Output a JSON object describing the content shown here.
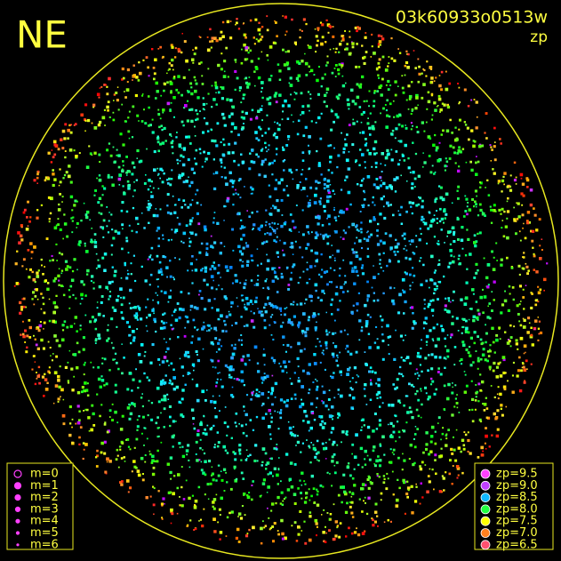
{
  "corner_label": "NE",
  "header": {
    "title": "03k60933o0513w",
    "subtitle": "zp"
  },
  "magnitude_legend": {
    "entries": [
      "m=0",
      "m=1",
      "m=2",
      "m=3",
      "m=4",
      "m=5",
      "m=6"
    ]
  },
  "zp_legend": {
    "entries": [
      {
        "label": "zp=9.5",
        "color": "#ff40ff"
      },
      {
        "label": "zp=9.0",
        "color": "#c040ff"
      },
      {
        "label": "zp=8.5",
        "color": "#10b8ff"
      },
      {
        "label": "zp=8.0",
        "color": "#20ff40"
      },
      {
        "label": "zp=7.5",
        "color": "#ffff00"
      },
      {
        "label": "zp=7.0",
        "color": "#ff8020"
      },
      {
        "label": "zp=6.5",
        "color": "#ff5070"
      }
    ]
  }
}
